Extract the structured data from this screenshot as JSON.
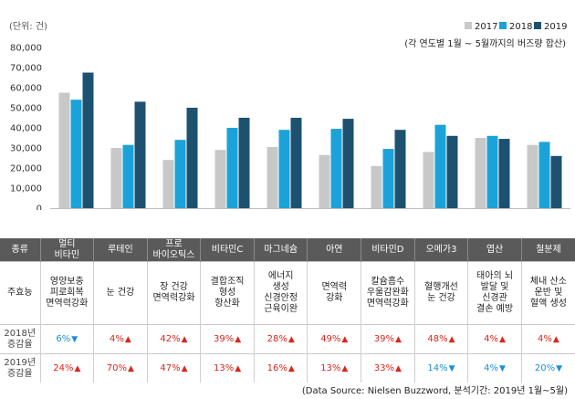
{
  "chart_data": {
    "type": "bar",
    "unit_label": "(단위: 건)",
    "note": "(각 연도별 1월 ~ 5월까지의 버즈량 합산)",
    "categories": [
      "멀티 비타민",
      "루테인",
      "프로 바이오틱스",
      "비타민C",
      "마그네슘",
      "아연",
      "비타민D",
      "오메가3",
      "엽산",
      "철분제"
    ],
    "series": [
      {
        "name": "2017",
        "color": "#c8c8c8",
        "values": [
          57500,
          30000,
          24000,
          29000,
          30500,
          26500,
          21000,
          28000,
          35000,
          31500
        ]
      },
      {
        "name": "2018",
        "color": "#1ba3d9",
        "values": [
          54000,
          31500,
          34000,
          40000,
          39000,
          39500,
          29500,
          41500,
          36000,
          33000
        ]
      },
      {
        "name": "2019",
        "color": "#1d5170",
        "values": [
          67500,
          53000,
          50000,
          45000,
          45000,
          44500,
          39000,
          36000,
          34500,
          26000
        ]
      }
    ],
    "ylim": [
      0,
      80000
    ],
    "yticks": [
      "0",
      "10,000",
      "20,000",
      "30,000",
      "40,000",
      "50,000",
      "60,000",
      "70,000",
      "80,000"
    ]
  },
  "table": {
    "header_label": "종류",
    "products": [
      "멀티\n비타민",
      "루테인",
      "프로\n바이오틱스",
      "비타민C",
      "마그네슘",
      "아연",
      "비타민D",
      "오메가3",
      "엽산",
      "철분제"
    ],
    "effect_label": "주효능",
    "effects": [
      "영양보충\n피로회복\n면역력강화",
      "눈 건강",
      "장 건강\n면역력강화",
      "결합조직\n형성\n항산화",
      "에너지\n생성\n신경안정\n근육이완",
      "면역력\n강화",
      "칼슘흡수\n우울감완화\n면역력강화",
      "혈행개선\n눈 건강",
      "태아의 뇌\n발달 및\n신경관\n결손 예방",
      "체내 산소\n운반 및\n혈액 생성"
    ],
    "row2018_label": "2018년\n증감율",
    "row2018": [
      {
        "value": "6%",
        "dir": "down"
      },
      {
        "value": "4%",
        "dir": "up"
      },
      {
        "value": "42%",
        "dir": "up"
      },
      {
        "value": "39%",
        "dir": "up"
      },
      {
        "value": "28%",
        "dir": "up"
      },
      {
        "value": "49%",
        "dir": "up"
      },
      {
        "value": "39%",
        "dir": "up"
      },
      {
        "value": "48%",
        "dir": "up"
      },
      {
        "value": "4%",
        "dir": "up"
      },
      {
        "value": "4%",
        "dir": "up"
      }
    ],
    "row2019_label": "2019년\n증감율",
    "row2019": [
      {
        "value": "24%",
        "dir": "up"
      },
      {
        "value": "70%",
        "dir": "up"
      },
      {
        "value": "47%",
        "dir": "up"
      },
      {
        "value": "13%",
        "dir": "up"
      },
      {
        "value": "16%",
        "dir": "up"
      },
      {
        "value": "13%",
        "dir": "up"
      },
      {
        "value": "33%",
        "dir": "up"
      },
      {
        "value": "14%",
        "dir": "down"
      },
      {
        "value": "4%",
        "dir": "down"
      },
      {
        "value": "20%",
        "dir": "down"
      }
    ]
  },
  "source": "(Data Source: Nielsen Buzzword,  분석기간: 2019년  1월~5월)"
}
